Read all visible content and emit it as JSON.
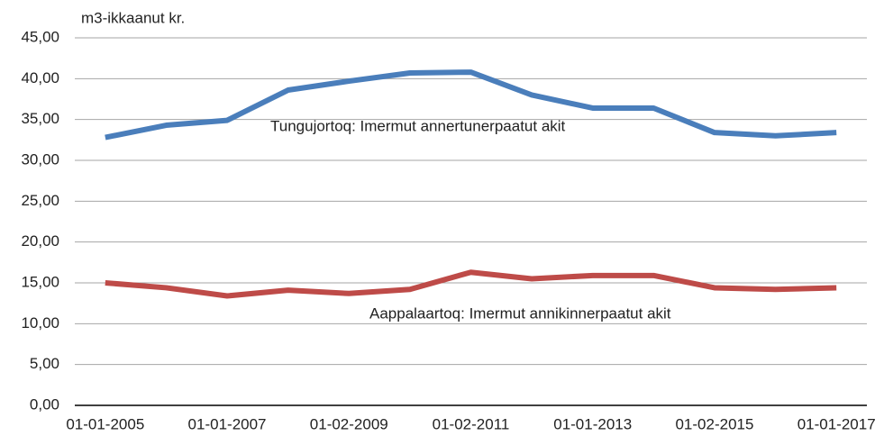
{
  "chart_data": {
    "type": "line",
    "y_label": "m3-ikkaanut kr.",
    "categories": [
      "01-01-2005",
      null,
      "01-01-2007",
      null,
      "01-02-2009",
      null,
      "01-02-2011",
      null,
      "01-01-2013",
      null,
      "01-02-2015",
      null,
      "01-01-2017"
    ],
    "series": [
      {
        "name": "Tungujortoq: Imermut annertunerpaatut akit",
        "color": "#4a7ebb",
        "values": [
          32.8,
          34.3,
          34.9,
          38.6,
          39.7,
          40.7,
          40.8,
          38.0,
          36.4,
          36.4,
          33.4,
          33.0,
          33.4
        ]
      },
      {
        "name": "Aappalaartoq: Imermut annikinnerpaatut akit",
        "color": "#be4b48",
        "values": [
          15.0,
          14.4,
          13.4,
          14.1,
          13.7,
          14.2,
          16.3,
          15.5,
          15.9,
          15.9,
          14.4,
          14.2,
          14.4
        ]
      }
    ],
    "ylim": [
      0,
      45
    ],
    "yticks": [
      {
        "value": 0,
        "label": "0,00"
      },
      {
        "value": 5,
        "label": "5,00"
      },
      {
        "value": 10,
        "label": "10,00"
      },
      {
        "value": 15,
        "label": "15,00"
      },
      {
        "value": 20,
        "label": "20,00"
      },
      {
        "value": 25,
        "label": "25,00"
      },
      {
        "value": 30,
        "label": "30,00"
      },
      {
        "value": 35,
        "label": "35,00"
      },
      {
        "value": 40,
        "label": "40,00"
      },
      {
        "value": 45,
        "label": "45,00"
      }
    ],
    "grid": true
  }
}
